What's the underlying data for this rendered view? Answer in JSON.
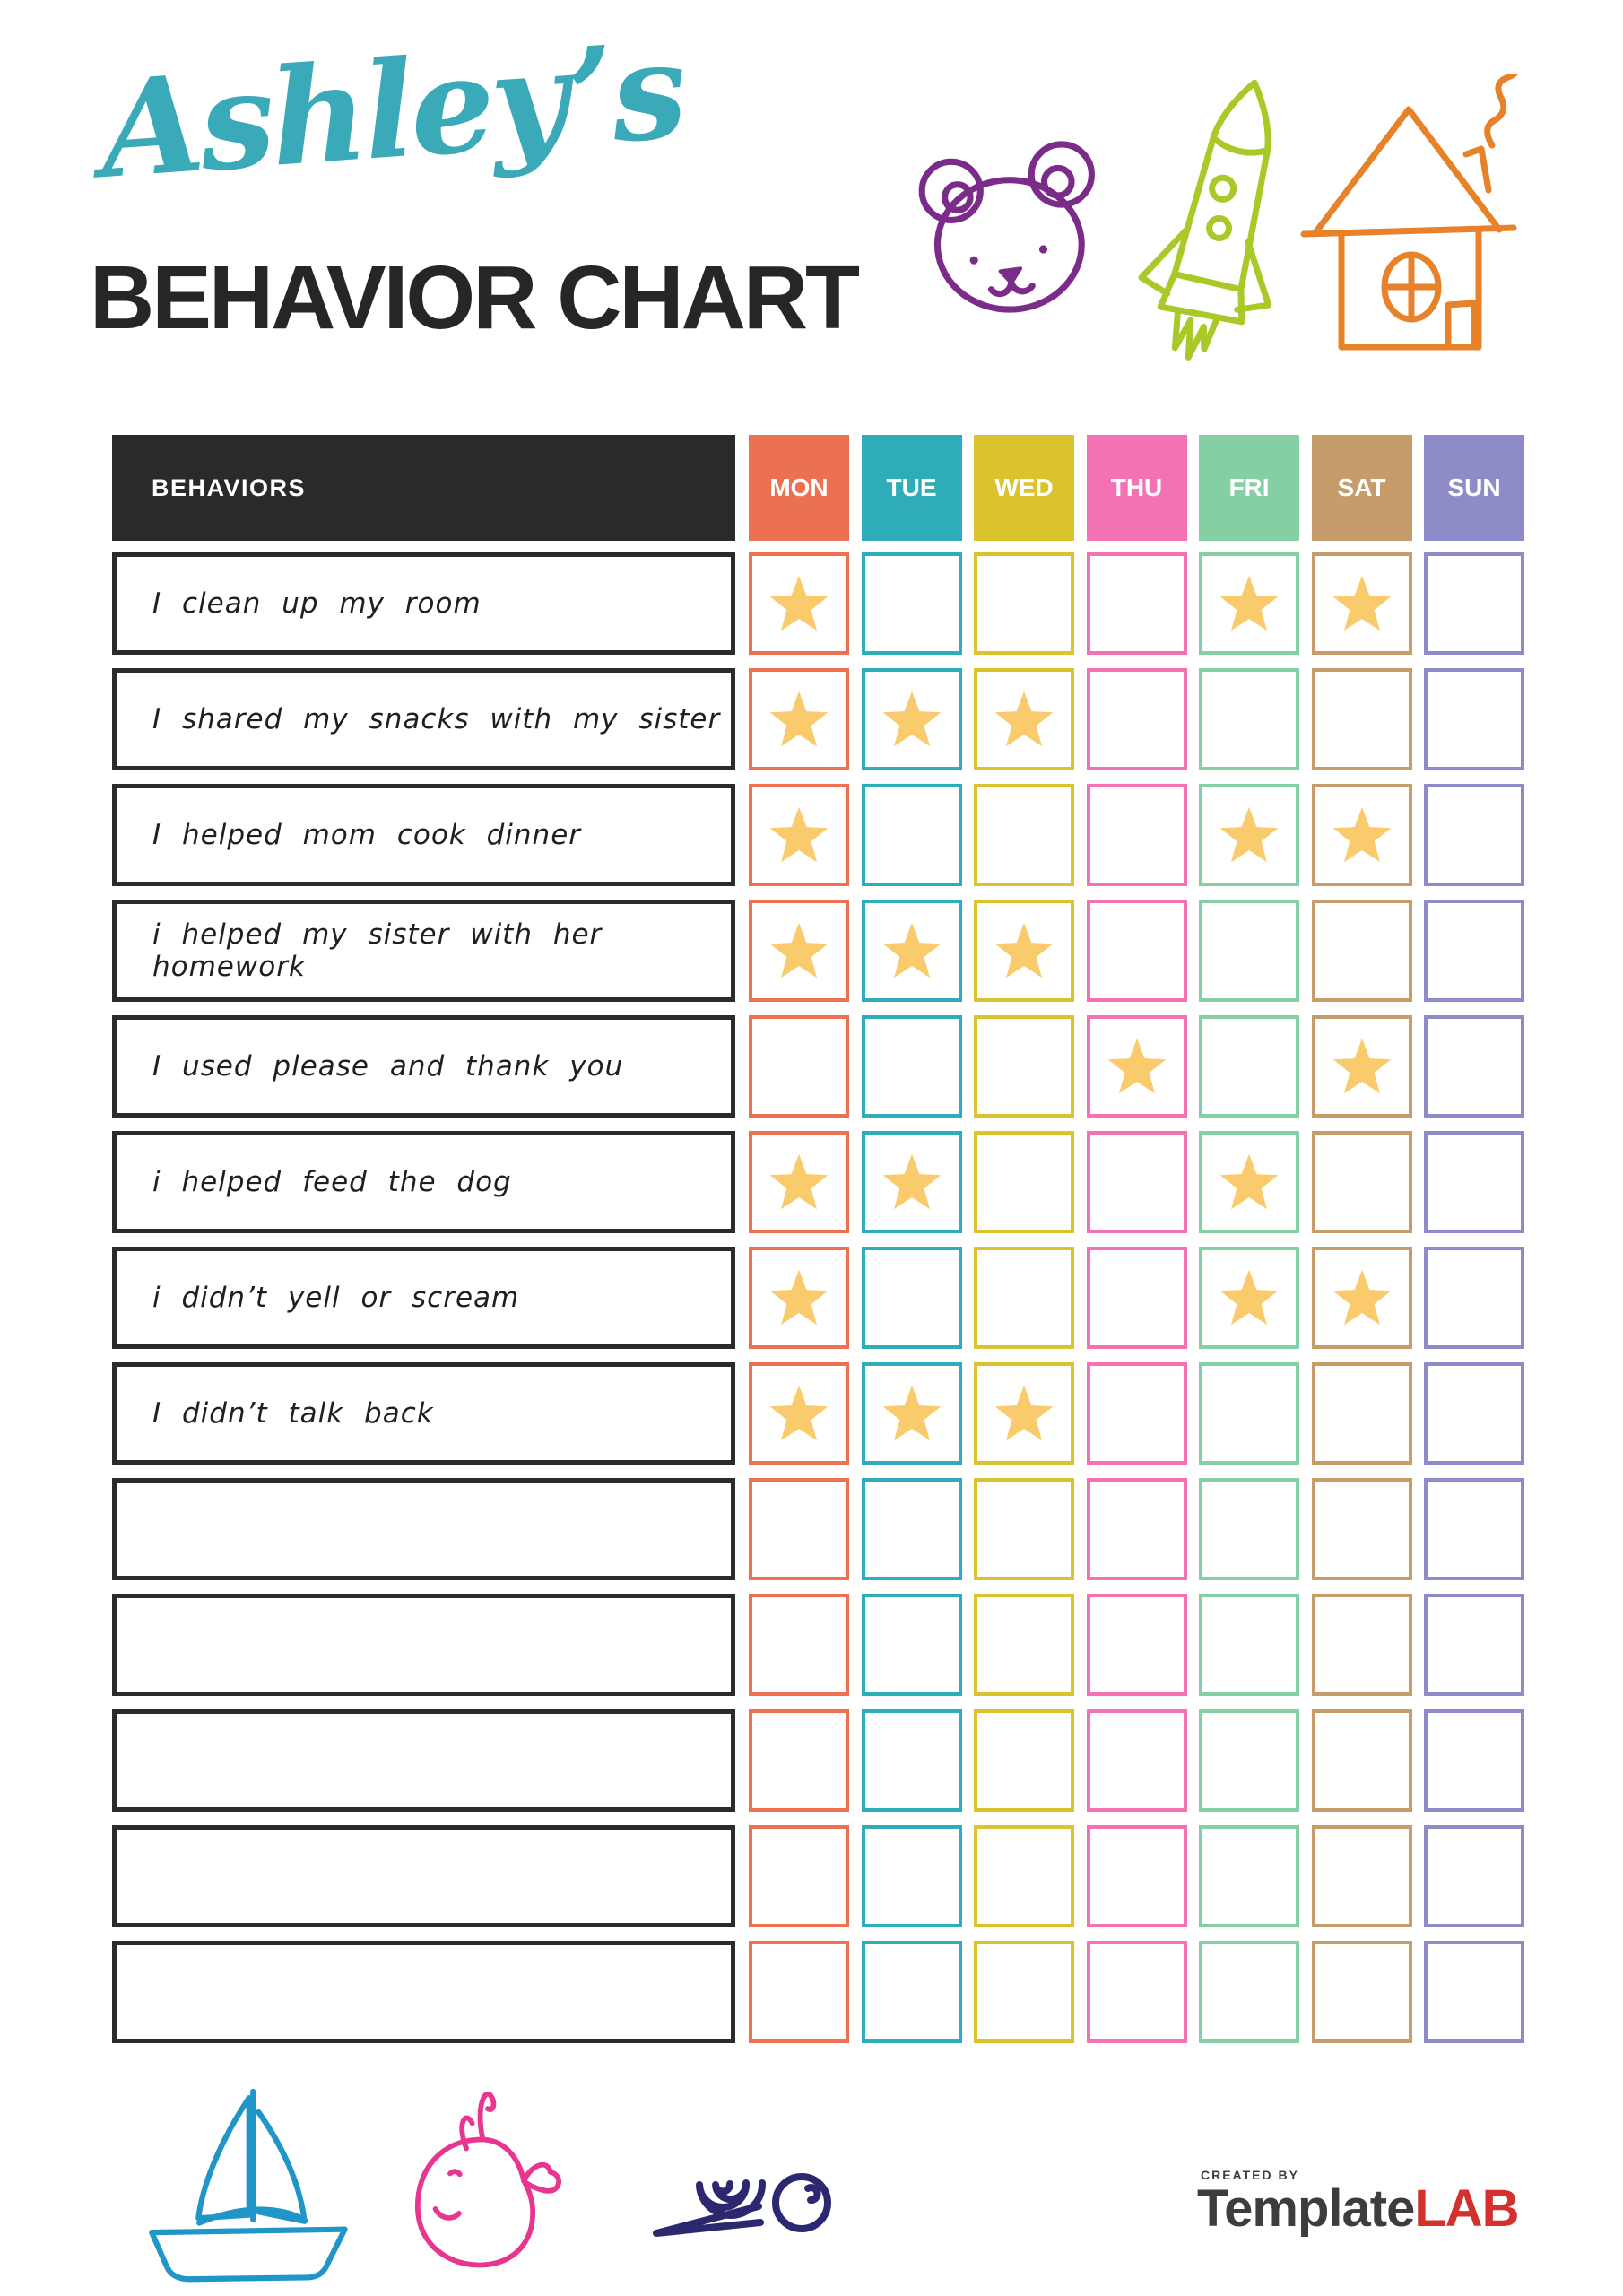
{
  "title": {
    "name": "Ashley’s",
    "name_color": "#3aa9b8",
    "subtitle": "BEHAVIOR CHART",
    "subtitle_color": "#262626"
  },
  "doodles": {
    "top": [
      {
        "name": "bear-doodle",
        "color": "#7b2c89"
      },
      {
        "name": "rocket-doodle",
        "color": "#a9c929"
      },
      {
        "name": "house-doodle",
        "color": "#e7812a"
      }
    ],
    "bottom": [
      {
        "name": "sailboat-doodle",
        "color": "#2095c8"
      },
      {
        "name": "whale-doodle",
        "color": "#e6368f"
      },
      {
        "name": "snail-doodle",
        "color": "#2c2870"
      }
    ]
  },
  "table": {
    "header_label": "BEHAVIORS",
    "header_bg": "#2a2a2a",
    "star_color": "#f9cb6c",
    "days": [
      {
        "label": "MON",
        "color": "#eb7150"
      },
      {
        "label": "TUE",
        "color": "#2facb9"
      },
      {
        "label": "WED",
        "color": "#dbc32e"
      },
      {
        "label": "THU",
        "color": "#f272b4"
      },
      {
        "label": "FRI",
        "color": "#85cfa4"
      },
      {
        "label": "SAT",
        "color": "#c79c6b"
      },
      {
        "label": "SUN",
        "color": "#8d8cc8"
      }
    ],
    "rows": [
      {
        "behavior": "I clean up my room",
        "stars": [
          1,
          0,
          0,
          0,
          1,
          1,
          0
        ]
      },
      {
        "behavior": "I shared my snacks with my sister",
        "stars": [
          1,
          1,
          1,
          0,
          0,
          0,
          0
        ]
      },
      {
        "behavior": "I helped mom cook dinner",
        "stars": [
          1,
          0,
          0,
          0,
          1,
          1,
          0
        ]
      },
      {
        "behavior": "i helped my sister with her homework",
        "stars": [
          1,
          1,
          1,
          0,
          0,
          0,
          0
        ]
      },
      {
        "behavior": "I used please and thank you",
        "stars": [
          0,
          0,
          0,
          1,
          0,
          1,
          0
        ]
      },
      {
        "behavior": "i helped feed the dog",
        "stars": [
          1,
          1,
          0,
          0,
          1,
          0,
          0
        ]
      },
      {
        "behavior": "i didn’t yell or scream",
        "stars": [
          1,
          0,
          0,
          0,
          1,
          1,
          0
        ]
      },
      {
        "behavior": "I didn’t talk back",
        "stars": [
          1,
          1,
          1,
          0,
          0,
          0,
          0
        ]
      },
      {
        "behavior": "",
        "stars": [
          0,
          0,
          0,
          0,
          0,
          0,
          0
        ]
      },
      {
        "behavior": "",
        "stars": [
          0,
          0,
          0,
          0,
          0,
          0,
          0
        ]
      },
      {
        "behavior": "",
        "stars": [
          0,
          0,
          0,
          0,
          0,
          0,
          0
        ]
      },
      {
        "behavior": "",
        "stars": [
          0,
          0,
          0,
          0,
          0,
          0,
          0
        ]
      },
      {
        "behavior": "",
        "stars": [
          0,
          0,
          0,
          0,
          0,
          0,
          0
        ]
      }
    ]
  },
  "footer": {
    "created_by": "CREATED BY",
    "brand_primary": "Template",
    "brand_accent": "LAB"
  }
}
